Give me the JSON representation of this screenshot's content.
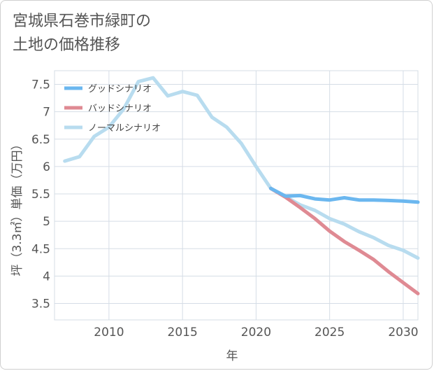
{
  "page": {
    "title_lines": [
      "宮城県石巻市緑町の",
      "土地の価格推移"
    ]
  },
  "chart_data": {
    "type": "line",
    "title": "宮城県石巻市緑町の土地の価格推移",
    "xlabel": "年",
    "ylabel": "坪（3.3㎡）単価（万円）",
    "xlim": [
      2006.3,
      2031.0
    ],
    "ylim": [
      3.2,
      7.75
    ],
    "xticks": [
      2010,
      2015,
      2020,
      2025,
      2030
    ],
    "yticks": [
      3.5,
      4,
      4.5,
      5,
      5.5,
      6,
      6.5,
      7,
      7.5
    ],
    "ytick_labels": [
      "3.5",
      "4",
      "4.5",
      "5",
      "5.5",
      "6",
      "6.5",
      "7",
      "7.5"
    ],
    "grid": true,
    "legend_position": "top-left",
    "series": [
      {
        "name": "グッドシナリオ",
        "color": "#6bb7ef",
        "x": [
          2021,
          2022,
          2023,
          2024,
          2025,
          2026,
          2027,
          2028,
          2029,
          2030,
          2031
        ],
        "y": [
          5.6,
          5.46,
          5.47,
          5.41,
          5.39,
          5.43,
          5.39,
          5.39,
          5.38,
          5.37,
          5.35
        ]
      },
      {
        "name": "バッドシナリオ",
        "color": "#df8a93",
        "x": [
          2021,
          2022,
          2023,
          2024,
          2025,
          2026,
          2027,
          2028,
          2029,
          2030,
          2031
        ],
        "y": [
          5.6,
          5.44,
          5.25,
          5.05,
          4.82,
          4.63,
          4.47,
          4.3,
          4.08,
          3.88,
          3.68
        ]
      },
      {
        "name": "ノーマルシナリオ",
        "color": "#b8dcef",
        "x": [
          2007,
          2008,
          2009,
          2010,
          2011,
          2012,
          2013,
          2014,
          2015,
          2016,
          2017,
          2018,
          2019,
          2020,
          2021,
          2022,
          2023,
          2024,
          2025,
          2026,
          2027,
          2028,
          2029,
          2030,
          2031
        ],
        "y": [
          6.1,
          6.18,
          6.55,
          6.72,
          7.05,
          7.55,
          7.62,
          7.29,
          7.37,
          7.3,
          6.9,
          6.72,
          6.42,
          6.0,
          5.6,
          5.45,
          5.3,
          5.2,
          5.05,
          4.95,
          4.81,
          4.7,
          4.56,
          4.47,
          4.33
        ]
      }
    ]
  }
}
